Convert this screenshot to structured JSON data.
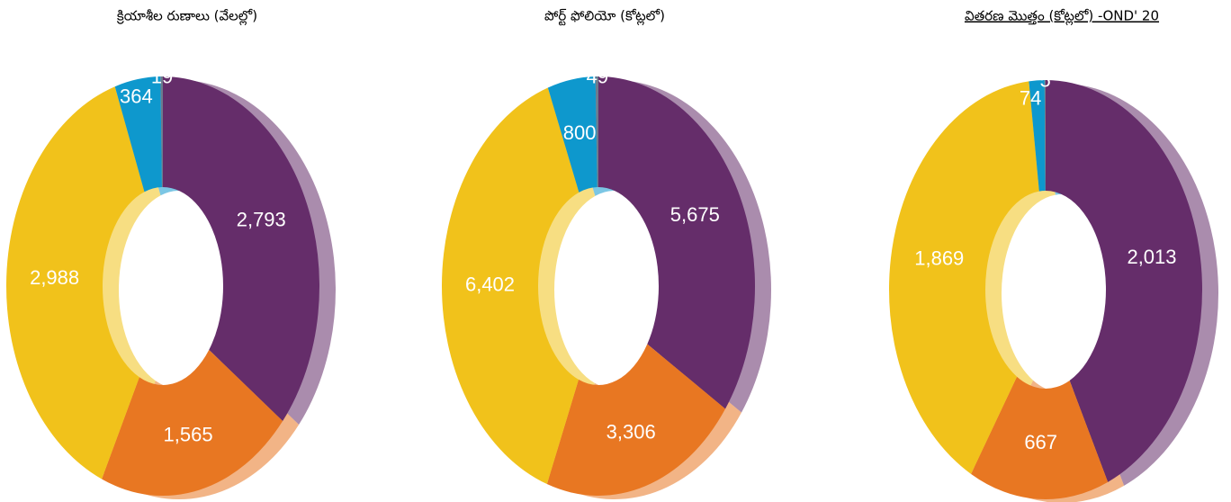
{
  "chart_data": [
    {
      "type": "pie",
      "title": "క్రియాశీల రుణాలు (వేలల్లో)",
      "values": [
        2793,
        1565,
        2988,
        364,
        19
      ],
      "value_labels": [
        "2,793",
        "1,565",
        "2,988",
        "364",
        "19"
      ],
      "colors": [
        "#652d6a",
        "#e87722",
        "#f1c21b",
        "#0e98cd",
        "#6d7b8d"
      ]
    },
    {
      "type": "pie",
      "title": "పోర్ట్ ఫోలియో (కోట్లలో)",
      "values": [
        5675,
        3306,
        6402,
        800,
        49
      ],
      "value_labels": [
        "5,675",
        "3,306",
        "6,402",
        "800",
        "49"
      ],
      "colors": [
        "#652d6a",
        "#e87722",
        "#f1c21b",
        "#0e98cd",
        "#6d7b8d"
      ]
    },
    {
      "type": "pie",
      "title": "వితరణ మొత్తం (కోట్లలో) -OND' 20",
      "values": [
        2013,
        667,
        1869,
        74,
        5
      ],
      "value_labels": [
        "2,013",
        "667",
        "1,869",
        "74",
        "5"
      ],
      "colors": [
        "#652d6a",
        "#e87722",
        "#f1c21b",
        "#0e98cd",
        "#6d7b8d"
      ]
    }
  ]
}
